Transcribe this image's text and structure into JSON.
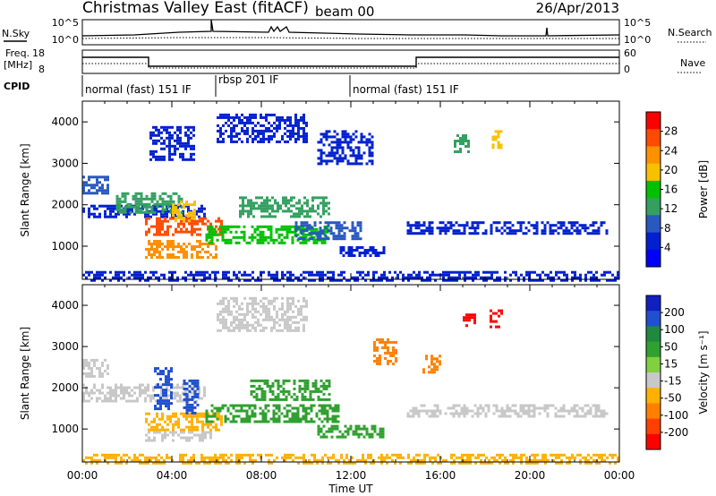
{
  "header": {
    "station_title": "Christmas Valley East (fitACF)",
    "beam": "beam 00",
    "date": "26/Apr/2013"
  },
  "top_panels": {
    "nsky_label": "N.Sky",
    "nsearch_label": "N.Search",
    "nsky_ticks": [
      "10^5",
      "10^0"
    ],
    "nsearch_ticks": [
      "10^5",
      "10^0"
    ],
    "freq_label": "Freq.",
    "freq_unit": "[MHz]",
    "freq_ticks": [
      "18",
      "8"
    ],
    "nave_label": "Nave",
    "nave_ticks": [
      "60",
      "0"
    ],
    "cpid_label": "CPID",
    "cpid_segments": [
      {
        "label": "normal (fast) 151 IF",
        "start_hour": 0,
        "end_hour": 6
      },
      {
        "label": "rbsp 201 IF",
        "start_hour": 6,
        "end_hour": 12
      },
      {
        "label": "normal (fast) 151 IF",
        "start_hour": 12,
        "end_hour": 24
      }
    ]
  },
  "x_axis": {
    "label": "Time UT",
    "ticks": [
      "00:00",
      "04:00",
      "08:00",
      "12:00",
      "16:00",
      "20:00",
      "00:00"
    ]
  },
  "colorbars": {
    "power": {
      "label": "Power [dB]",
      "ticks": [
        "28",
        "24",
        "20",
        "16",
        "12",
        "8",
        "4"
      ],
      "colors": [
        "#ff0000",
        "#ff4b00",
        "#ff9000",
        "#f7c000",
        "#00c000",
        "#34a060",
        "#2858c0",
        "#0020d0",
        "#0000ff"
      ]
    },
    "velocity": {
      "label": "Velocity [m s⁻¹]",
      "ticks": [
        "200",
        "100",
        "50",
        "15",
        "-15",
        "-50",
        "-100",
        "-200"
      ],
      "colors": [
        "#1020c0",
        "#2050d0",
        "#208840",
        "#30a030",
        "#80d040",
        "#c8c8c8",
        "#ffb000",
        "#ff8000",
        "#ff4000",
        "#ff0000"
      ]
    }
  },
  "chart_data": [
    {
      "type": "heatmap",
      "title": "Power",
      "xlabel": "Time UT",
      "ylabel": "Slant Range [km]",
      "xlim": [
        0,
        24
      ],
      "ylim": [
        200,
        4500
      ],
      "y_ticks": [
        1000,
        2000,
        3000,
        4000
      ],
      "colorbar": "Power [dB]",
      "regions": [
        {
          "t0": 0.0,
          "t1": 1.2,
          "r0": 2300,
          "r1": 2700,
          "db": 8
        },
        {
          "t0": 0.0,
          "t1": 5.5,
          "r0": 1700,
          "r1": 2000,
          "db": 6
        },
        {
          "t0": 1.5,
          "t1": 4.5,
          "r0": 1800,
          "r1": 2300,
          "db": 14
        },
        {
          "t0": 2.8,
          "t1": 6.2,
          "r0": 1300,
          "r1": 1700,
          "db": 26
        },
        {
          "t0": 2.8,
          "t1": 6.0,
          "r0": 700,
          "r1": 1150,
          "db": 24
        },
        {
          "t0": 4.0,
          "t1": 5.0,
          "r0": 1600,
          "r1": 2100,
          "db": 20
        },
        {
          "t0": 5.5,
          "t1": 11.0,
          "r0": 1100,
          "r1": 1500,
          "db": 16
        },
        {
          "t0": 7.0,
          "t1": 11.0,
          "r0": 1700,
          "r1": 2200,
          "db": 12
        },
        {
          "t0": 9.5,
          "t1": 12.5,
          "r0": 1200,
          "r1": 1600,
          "db": 10
        },
        {
          "t0": 11.5,
          "t1": 13.5,
          "r0": 800,
          "r1": 1000,
          "db": 6
        },
        {
          "t0": 3.0,
          "t1": 5.0,
          "r0": 3100,
          "r1": 3900,
          "db": 6
        },
        {
          "t0": 6.0,
          "t1": 10.0,
          "r0": 3500,
          "r1": 4200,
          "db": 6
        },
        {
          "t0": 10.5,
          "t1": 13.0,
          "r0": 3000,
          "r1": 3800,
          "db": 5
        },
        {
          "t0": 16.6,
          "t1": 17.3,
          "r0": 3300,
          "r1": 3700,
          "db": 14
        },
        {
          "t0": 18.3,
          "t1": 18.7,
          "r0": 3400,
          "r1": 3800,
          "db": 18
        },
        {
          "t0": 14.5,
          "t1": 23.5,
          "r0": 1300,
          "r1": 1600,
          "db": 4
        },
        {
          "t0": 0.0,
          "t1": 24.0,
          "r0": 200,
          "r1": 400,
          "db": 6
        }
      ]
    },
    {
      "type": "heatmap",
      "title": "Velocity",
      "xlabel": "Time UT",
      "ylabel": "Slant Range [km]",
      "xlim": [
        0,
        24
      ],
      "ylim": [
        200,
        4500
      ],
      "y_ticks": [
        1000,
        2000,
        3000,
        4000
      ],
      "colorbar": "Velocity [m s⁻¹]",
      "regions": [
        {
          "t0": 0.0,
          "t1": 1.2,
          "r0": 2300,
          "r1": 2700,
          "v": -10
        },
        {
          "t0": 0.0,
          "t1": 5.5,
          "r0": 1700,
          "r1": 2100,
          "v": 0
        },
        {
          "t0": 2.8,
          "t1": 6.2,
          "r0": 1000,
          "r1": 1400,
          "v": -80
        },
        {
          "t0": 2.8,
          "t1": 5.8,
          "r0": 700,
          "r1": 950,
          "v": -50
        },
        {
          "t0": 3.2,
          "t1": 4.0,
          "r0": 1500,
          "r1": 2500,
          "v": 180
        },
        {
          "t0": 4.5,
          "t1": 5.2,
          "r0": 1400,
          "r1": 2200,
          "v": 120
        },
        {
          "t0": 5.5,
          "t1": 11.5,
          "r0": 1200,
          "r1": 1600,
          "v": 40
        },
        {
          "t0": 7.5,
          "t1": 11.0,
          "r0": 1700,
          "r1": 2200,
          "v": 30
        },
        {
          "t0": 10.5,
          "t1": 13.5,
          "r0": 800,
          "r1": 1100,
          "v": 20
        },
        {
          "t0": 6.0,
          "t1": 10.0,
          "r0": 3400,
          "r1": 4200,
          "v": -30
        },
        {
          "t0": 13.0,
          "t1": 14.0,
          "r0": 2600,
          "r1": 3200,
          "v": -180
        },
        {
          "t0": 15.2,
          "t1": 16.0,
          "r0": 2400,
          "r1": 2800,
          "v": -200
        },
        {
          "t0": 17.0,
          "t1": 17.5,
          "r0": 3500,
          "r1": 3800,
          "v": -220
        },
        {
          "t0": 18.2,
          "t1": 18.8,
          "r0": 3500,
          "r1": 3900,
          "v": -220
        },
        {
          "t0": 14.5,
          "t1": 23.5,
          "r0": 1300,
          "r1": 1600,
          "v": -5
        },
        {
          "t0": 0.0,
          "t1": 24.0,
          "r0": 200,
          "r1": 400,
          "v": -60
        }
      ]
    }
  ]
}
